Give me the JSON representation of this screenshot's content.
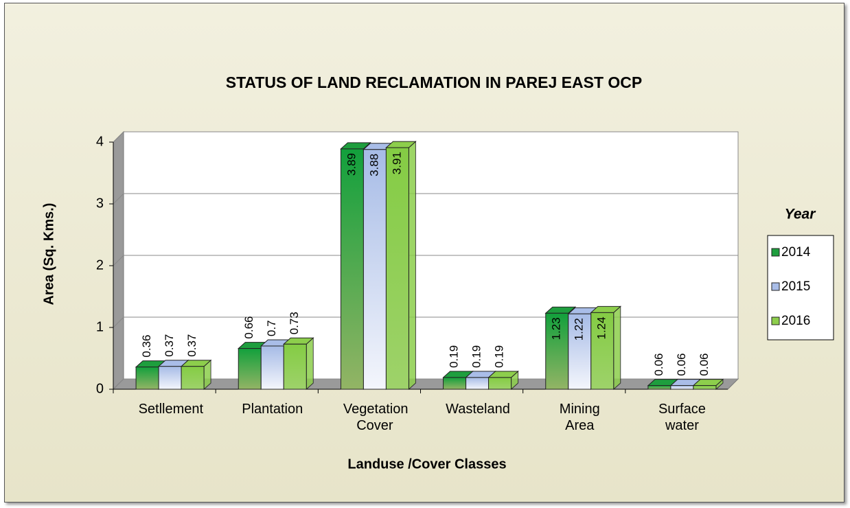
{
  "chart_data": {
    "type": "bar3d",
    "title": "STATUS OF LAND RECLAMATION  IN PAREJ EAST OCP",
    "y_label": "Area (Sq. Kms.)",
    "x_label": "Landuse /Cover Classes",
    "legend_title": "Year",
    "categories": [
      "Setllement",
      "Plantation",
      "Vegetation Cover",
      "Wasteland",
      "Mining Area",
      "Surface water"
    ],
    "series": [
      {
        "name": "2014",
        "color": "#1e9e3e",
        "values": [
          0.36,
          0.66,
          3.89,
          0.19,
          1.23,
          0.06
        ]
      },
      {
        "name": "2015",
        "color": "#a9bde8",
        "values": [
          0.37,
          0.7,
          3.88,
          0.19,
          1.22,
          0.06
        ]
      },
      {
        "name": "2016",
        "color": "#8dce4c",
        "values": [
          0.37,
          0.73,
          3.91,
          0.19,
          1.24,
          0.06
        ]
      }
    ],
    "ylim": [
      0,
      4
    ],
    "yticks": [
      0,
      1,
      2,
      3,
      4
    ],
    "grid": true
  }
}
